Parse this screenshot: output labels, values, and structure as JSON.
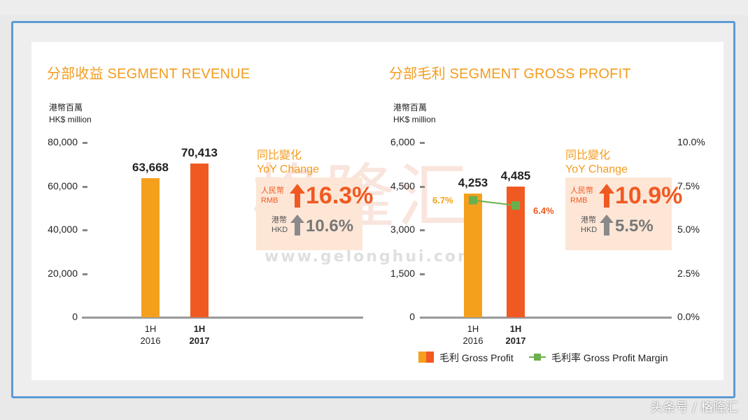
{
  "left": {
    "title": "分部收益 SEGMENT REVENUE",
    "unit_cn": "港幣百萬",
    "unit_en": "HK$ million",
    "yoy": {
      "title_cn": "同比變化",
      "title_en": "YoY Change",
      "rmb_cn": "人民幣",
      "rmb_en": "RMB",
      "rmb_value": "16.3%",
      "hkd_cn": "港幣",
      "hkd_en": "HKD",
      "hkd_value": "10.6%"
    }
  },
  "right": {
    "title": "分部毛利 SEGMENT GROSS PROFIT",
    "unit_cn": "港幣百萬",
    "unit_en": "HK$ million",
    "yoy": {
      "title_cn": "同比變化",
      "title_en": "YoY Change",
      "rmb_cn": "人民幣",
      "rmb_en": "RMB",
      "rmb_value": "10.9%",
      "hkd_cn": "港幣",
      "hkd_en": "HKD",
      "hkd_value": "5.5%"
    },
    "legend": {
      "bar_label": "毛利 Gross Profit",
      "line_label": "毛利率 Gross Profit Margin"
    }
  },
  "watermark": {
    "text": "格隆汇",
    "url": "www.gelonghui.com"
  },
  "footer": "头条号 / 格隆汇",
  "colors": {
    "orange": "#f5a01d",
    "red_orange": "#f05a22",
    "accent_title": "#f39c1f",
    "green": "#6ab04c",
    "up_arrow": "#f05a22",
    "gray_arrow": "#8a8a8a",
    "yoy_box": "#fde6d6"
  },
  "chart_data": [
    {
      "type": "bar",
      "title": "分部收益 SEGMENT REVENUE",
      "ylabel": "港幣百萬 HK$ million",
      "categories": [
        [
          "1H",
          "2016"
        ],
        [
          "1H",
          "2017"
        ]
      ],
      "values": [
        63668,
        70413
      ],
      "value_labels": [
        "63,668",
        "70,413"
      ],
      "ylim": [
        0,
        80000
      ],
      "yticks": [
        "0",
        "20,000",
        "40,000",
        "60,000",
        "80,000"
      ],
      "ytick_values": [
        0,
        20000,
        40000,
        60000,
        80000
      ]
    },
    {
      "type": "bar",
      "title": "分部毛利 SEGMENT GROSS PROFIT",
      "ylabel": "港幣百萬 HK$ million",
      "categories": [
        [
          "1H",
          "2016"
        ],
        [
          "1H",
          "2017"
        ]
      ],
      "values": [
        4253,
        4485
      ],
      "value_labels": [
        "4,253",
        "4,485"
      ],
      "ylim": [
        0,
        6000
      ],
      "yticks": [
        "0",
        "1,500",
        "3,000",
        "4,500",
        "6,000"
      ],
      "ytick_values": [
        0,
        1500,
        3000,
        4500,
        6000
      ],
      "secondary_axis": {
        "ylim": [
          0,
          10
        ],
        "yticks": [
          "0.0%",
          "2.5%",
          "5.0%",
          "7.5%",
          "10.0%"
        ],
        "ytick_values": [
          0,
          2.5,
          5,
          7.5,
          10
        ]
      },
      "line_series": {
        "name": "毛利率 Gross Profit Margin",
        "values": [
          6.7,
          6.4
        ],
        "labels": [
          "6.7%",
          "6.4%"
        ]
      }
    }
  ]
}
